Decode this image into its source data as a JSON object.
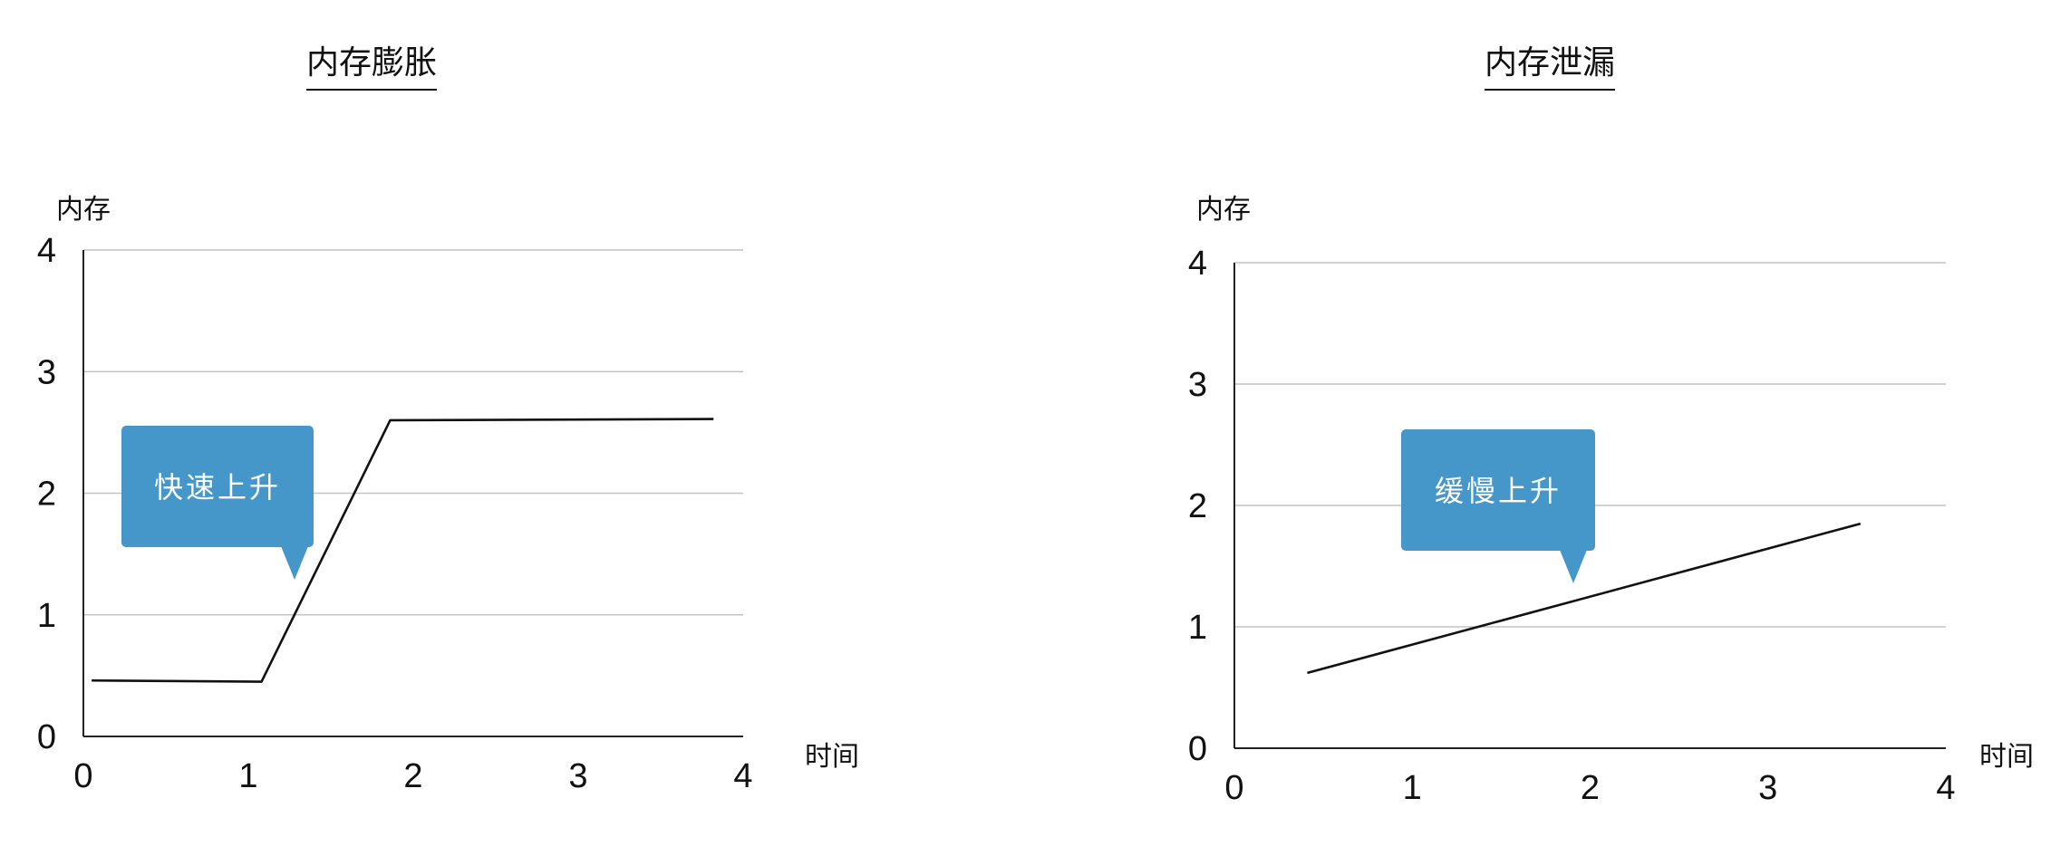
{
  "chart_data": [
    {
      "type": "line",
      "title": "内存膨胀",
      "ylabel": "内存",
      "xlabel": "时间",
      "xlim": [
        0,
        4
      ],
      "ylim": [
        0,
        4
      ],
      "xticks": [
        0,
        1,
        2,
        3,
        4
      ],
      "yticks": [
        0,
        1,
        2,
        3,
        4
      ],
      "grid": true,
      "series": [
        {
          "x": [
            0.05,
            1.08,
            1.86,
            3.82
          ],
          "y": [
            0.46,
            0.45,
            2.6,
            2.61
          ],
          "color": "#111111"
        }
      ],
      "annotation": {
        "text": "快速上升",
        "color": "#4596c9"
      }
    },
    {
      "type": "line",
      "title": "内存泄漏",
      "ylabel": "内存",
      "xlabel": "时间",
      "xlim": [
        0,
        4
      ],
      "ylim": [
        0,
        4
      ],
      "xticks": [
        0,
        1,
        2,
        3,
        4
      ],
      "yticks": [
        0,
        1,
        2,
        3,
        4
      ],
      "grid": true,
      "series": [
        {
          "x": [
            0.41,
            3.52
          ],
          "y": [
            0.62,
            1.85
          ],
          "color": "#111111"
        }
      ],
      "annotation": {
        "text": "缓慢上升",
        "color": "#4596c9"
      }
    }
  ]
}
